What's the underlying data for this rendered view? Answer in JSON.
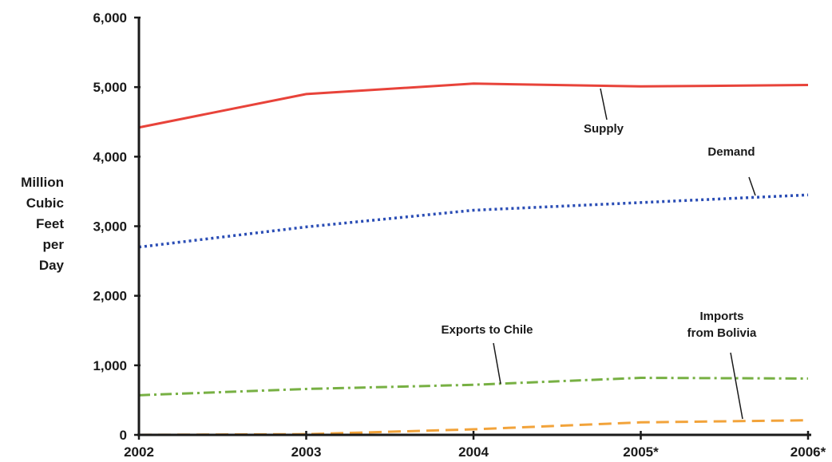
{
  "chart_data": {
    "type": "line",
    "x": [
      "2002",
      "2003",
      "2004",
      "2005*",
      "2006*"
    ],
    "ylabel_lines": [
      "Million",
      "Cubic",
      "Feet",
      "per",
      "Day"
    ],
    "yticks": [
      "0",
      "1,000",
      "2,000",
      "3,000",
      "4,000",
      "5,000",
      "6,000"
    ],
    "ylim": [
      0,
      6000
    ],
    "grid": false,
    "series": [
      {
        "name": "Supply",
        "values": [
          4420,
          4900,
          5050,
          5010,
          5030
        ],
        "color": "#e8433a",
        "style": "solid"
      },
      {
        "name": "Demand",
        "values": [
          2700,
          2990,
          3230,
          3340,
          3450
        ],
        "color": "#2a4db5",
        "style": "dotted"
      },
      {
        "name": "Exports to Chile",
        "values": [
          570,
          660,
          720,
          820,
          810
        ],
        "color": "#77b043",
        "style": "dashdot"
      },
      {
        "name": "Imports from Bolivia",
        "values": [
          0,
          10,
          80,
          180,
          210
        ],
        "color": "#f2a33a",
        "style": "dashed"
      }
    ],
    "annotations": [
      {
        "series": 0,
        "lines": [
          "Supply"
        ]
      },
      {
        "series": 1,
        "lines": [
          "Demand"
        ]
      },
      {
        "series": 2,
        "lines": [
          "Exports to Chile"
        ]
      },
      {
        "series": 3,
        "lines": [
          "Imports",
          "from Bolivia"
        ]
      }
    ]
  }
}
